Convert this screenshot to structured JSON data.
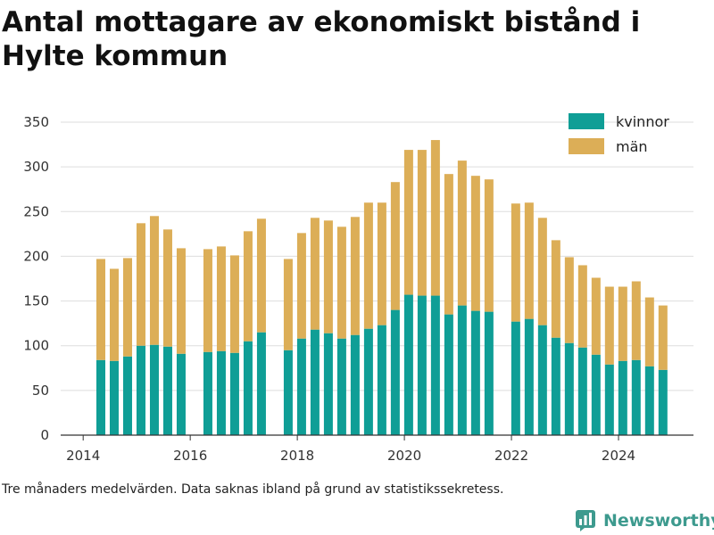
{
  "chart_data": {
    "type": "bar",
    "stacked": true,
    "title": "Antal mottagare av ekonomiskt bistånd i Hylte kommun",
    "xlabel": "",
    "ylabel": "",
    "ylim": [
      0,
      350
    ],
    "yticks": [
      0,
      50,
      100,
      150,
      200,
      250,
      300,
      350
    ],
    "xticks": [
      2014,
      2016,
      2018,
      2020,
      2022,
      2024
    ],
    "xlim": [
      2013.58,
      2025.4
    ],
    "grid": "horizontal",
    "legend_position": "top-right",
    "x": [
      2014.33,
      2014.58,
      2014.83,
      2015.08,
      2015.33,
      2015.58,
      2015.83,
      2016.33,
      2016.58,
      2016.83,
      2017.08,
      2017.33,
      2017.83,
      2018.08,
      2018.33,
      2018.58,
      2018.83,
      2019.08,
      2019.33,
      2019.58,
      2019.83,
      2020.08,
      2020.33,
      2020.58,
      2020.83,
      2021.08,
      2021.33,
      2021.58,
      2022.08,
      2022.33,
      2022.58,
      2022.83,
      2023.08,
      2023.33,
      2023.58,
      2023.83,
      2024.08,
      2024.33,
      2024.58,
      2024.83
    ],
    "series": [
      {
        "name": "kvinnor",
        "color": "#0f9e96",
        "values": [
          84,
          83,
          88,
          100,
          101,
          99,
          91,
          93,
          94,
          92,
          105,
          115,
          95,
          108,
          118,
          114,
          108,
          112,
          119,
          123,
          140,
          157,
          156,
          156,
          135,
          145,
          139,
          138,
          127,
          130,
          123,
          109,
          103,
          98,
          90,
          79,
          83,
          84,
          77,
          73
        ]
      },
      {
        "name": "män",
        "color": "#dcae57",
        "values": [
          113,
          103,
          110,
          137,
          144,
          131,
          118,
          115,
          117,
          109,
          123,
          127,
          102,
          118,
          125,
          126,
          125,
          132,
          141,
          137,
          143,
          162,
          163,
          174,
          157,
          162,
          151,
          148,
          132,
          130,
          120,
          109,
          96,
          92,
          86,
          87,
          83,
          88,
          77,
          72
        ]
      }
    ],
    "legend": [
      "kvinnor",
      "män"
    ]
  },
  "footnote": "Tre månaders medelvärden. Data saknas ibland på grund av statistikssekretess.",
  "brand": {
    "name": "Newsworthy",
    "icon": "bar-chart-logo-icon",
    "color": "#3d9a8e"
  }
}
